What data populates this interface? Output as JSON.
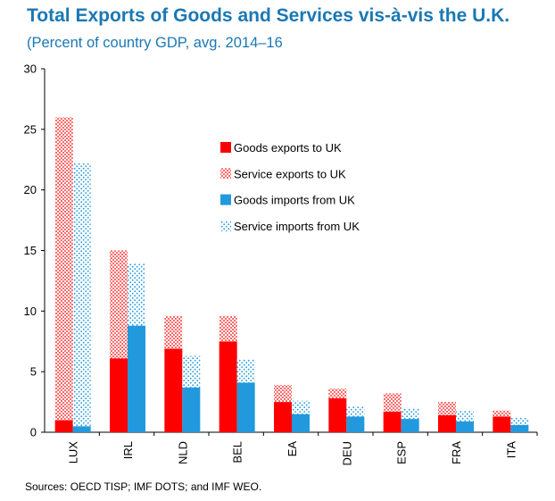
{
  "title": "Total Exports of Goods and Services vis-à-vis the U.K.",
  "subtitle": "(Percent of country GDP, avg. 2014–16",
  "source": "Sources: OECD TISP; IMF DOTS; and IMF WEO.",
  "colors": {
    "goods_exports": "#ff0000",
    "service_exports": "#ff0000",
    "goods_imports": "#2299dd",
    "service_imports": "#2299dd"
  },
  "chart_data": {
    "type": "bar",
    "stacked": true,
    "title": "Total Exports of Goods and Services vis-à-vis the U.K.",
    "subtitle": "(Percent of country GDP, avg. 2014–16",
    "xlabel": "",
    "ylabel": "",
    "ylim": [
      0,
      30
    ],
    "yticks": [
      0,
      5,
      10,
      15,
      20,
      25,
      30
    ],
    "grid": false,
    "legend_position": "top-right",
    "categories": [
      "LUX",
      "IRL",
      "NLD",
      "BEL",
      "EA",
      "DEU",
      "ESP",
      "FRA",
      "ITA"
    ],
    "groups": [
      {
        "name": "exports",
        "series": [
          {
            "name": "Goods exports to UK",
            "pattern": "solid",
            "values": [
              1.0,
              6.1,
              6.9,
              7.5,
              2.5,
              2.8,
              1.7,
              1.4,
              1.3
            ]
          },
          {
            "name": "Service exports to UK",
            "pattern": "dotted",
            "values": [
              25.0,
              8.9,
              2.7,
              2.1,
              1.4,
              0.8,
              1.5,
              1.1,
              0.5
            ]
          }
        ]
      },
      {
        "name": "imports",
        "series": [
          {
            "name": "Goods imports from UK",
            "pattern": "solid",
            "values": [
              0.5,
              8.8,
              3.7,
              4.1,
              1.5,
              1.3,
              1.1,
              0.9,
              0.6
            ]
          },
          {
            "name": "Service imports from UK",
            "pattern": "dotted",
            "values": [
              21.7,
              5.1,
              2.6,
              1.9,
              1.1,
              0.8,
              0.9,
              0.9,
              0.6
            ]
          }
        ]
      }
    ]
  }
}
